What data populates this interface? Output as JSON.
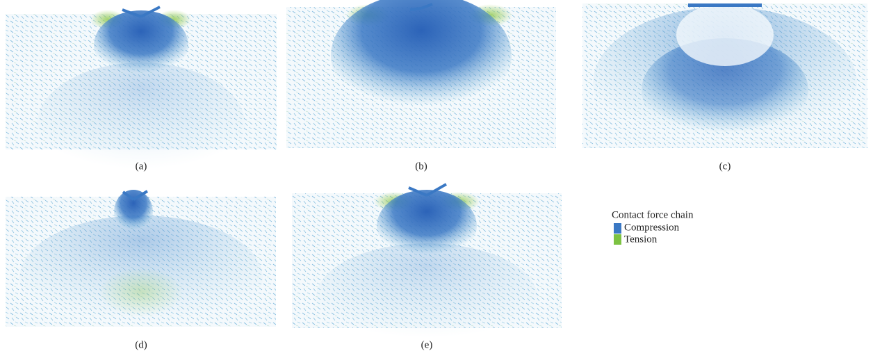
{
  "panels": [
    {
      "label": "(a)"
    },
    {
      "label": "(b)"
    },
    {
      "label": "(c)"
    },
    {
      "label": "(d)"
    },
    {
      "label": "(e)"
    }
  ],
  "legend": {
    "title": "Contact force chain",
    "items": [
      {
        "label": "Compression",
        "color": "#3a78c4"
      },
      {
        "label": "Tension",
        "color": "#7cc242"
      }
    ]
  }
}
